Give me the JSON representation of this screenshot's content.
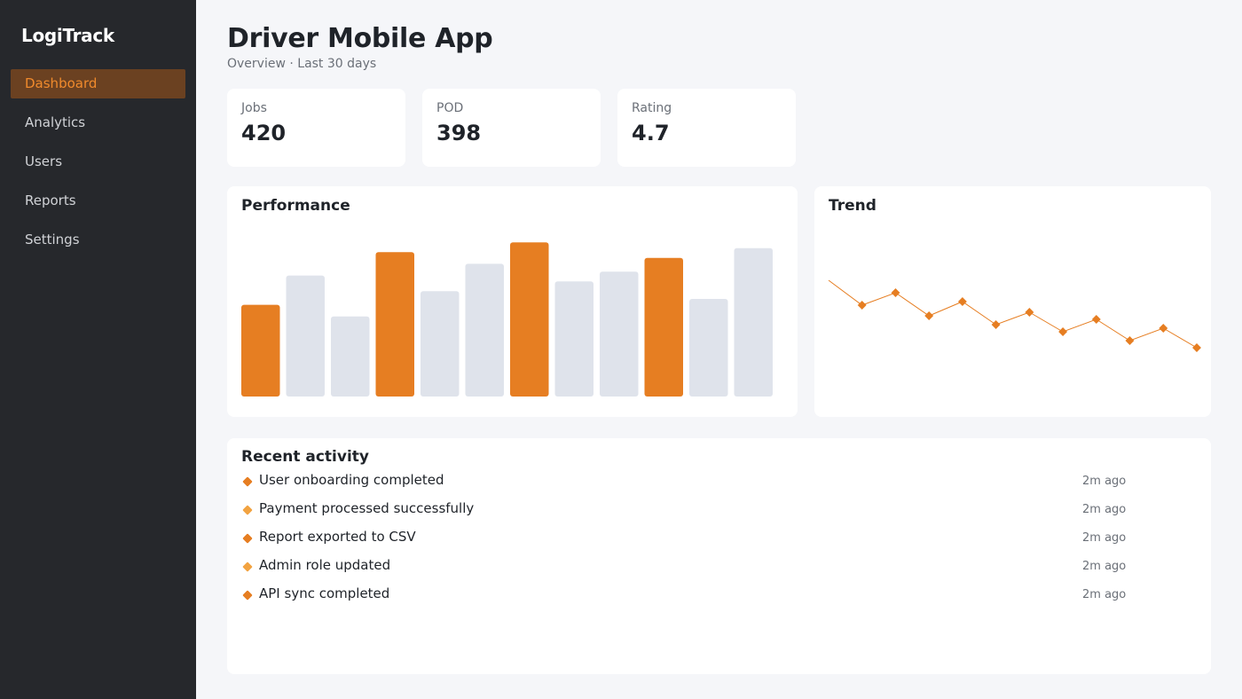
{
  "app": {
    "name": "LogiTrack"
  },
  "sidebar": {
    "items": [
      {
        "label": "Dashboard",
        "active": true
      },
      {
        "label": "Analytics",
        "active": false
      },
      {
        "label": "Users",
        "active": false
      },
      {
        "label": "Reports",
        "active": false
      },
      {
        "label": "Settings",
        "active": false
      }
    ]
  },
  "header": {
    "title": "Driver Mobile App",
    "subtitle": "Overview · Last 30 days"
  },
  "stats": [
    {
      "label": "Jobs",
      "value": "420"
    },
    {
      "label": "POD",
      "value": "398"
    },
    {
      "label": "Rating",
      "value": "4.7"
    }
  ],
  "performance": {
    "title": "Performance",
    "chart_data": {
      "type": "bar",
      "values": [
        47,
        62,
        41,
        74,
        54,
        68,
        79,
        59,
        64,
        71,
        50,
        76
      ],
      "highlighted": [
        true,
        false,
        false,
        true,
        false,
        false,
        true,
        false,
        false,
        true,
        false,
        false
      ],
      "ylim": [
        0,
        100
      ]
    }
  },
  "trend": {
    "title": "Trend",
    "chart_data": {
      "type": "line",
      "values": [
        72,
        58,
        65,
        52,
        60,
        47,
        54,
        43,
        50,
        38,
        45,
        34
      ],
      "ylim": [
        0,
        100
      ]
    }
  },
  "activity": {
    "title": "Recent activity",
    "items": [
      {
        "text": "User onboarding completed",
        "time": "2m ago"
      },
      {
        "text": "Payment processed successfully",
        "time": "2m ago"
      },
      {
        "text": "Report exported to CSV",
        "time": "2m ago"
      },
      {
        "text": "Admin role updated",
        "time": "2m ago"
      },
      {
        "text": "API sync completed",
        "time": "2m ago"
      }
    ]
  },
  "colors": {
    "accent": "#e67e22",
    "accent_light": "#f2a341",
    "bar_muted": "#dfe3eb",
    "sidebar_bg": "#26282c",
    "active_bg": "#6b4121"
  }
}
